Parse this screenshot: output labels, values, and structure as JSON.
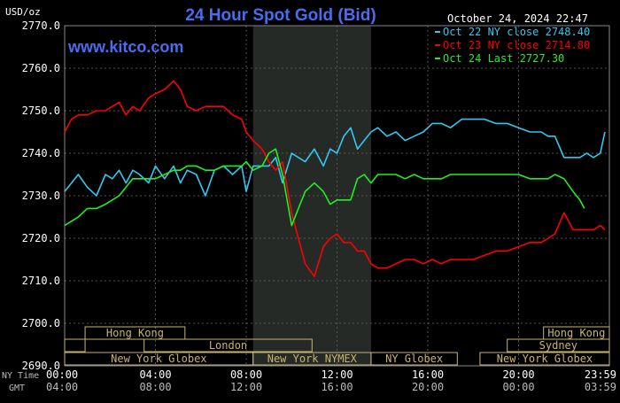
{
  "chart_data": {
    "type": "line",
    "title": "24 Hour Spot Gold (Bid)",
    "site": "www.kitco.com",
    "timestamp": "October 24, 2024 22:47",
    "ylabel": "USD/oz",
    "ylim": [
      2690,
      2770
    ],
    "y_ticks": [
      "2770.0",
      "2760.0",
      "2750.0",
      "2740.0",
      "2730.0",
      "2720.0",
      "2710.0",
      "2700.0",
      "2690.0"
    ],
    "x_ticks": [
      {
        "hour": 0,
        "ny": "00:00",
        "gmt": "04:00"
      },
      {
        "hour": 4,
        "ny": "04:00",
        "gmt": "08:00"
      },
      {
        "hour": 8,
        "ny": "08:00",
        "gmt": "12:00"
      },
      {
        "hour": 12,
        "ny": "12:00",
        "gmt": "16:00"
      },
      {
        "hour": 16,
        "ny": "16:00",
        "gmt": "20:00"
      },
      {
        "hour": 20,
        "ny": "20:00",
        "gmt": "00:00"
      },
      {
        "hour": 23.983,
        "ny": "23:59",
        "gmt": "03:59"
      }
    ],
    "row_labels": {
      "ny": "NY Time",
      "gmt": "GMT"
    },
    "grid": true,
    "legend_position": "top-right",
    "colors": {
      "background": "#000000",
      "grid": "#555555",
      "text": "#ffffff",
      "title": "#4a6cf0",
      "shaded_session": "#262a26",
      "market_box": "#c8b470",
      "series_oct22": "#33c8f0",
      "series_oct23": "#ff0000",
      "series_oct24": "#22ee22"
    },
    "shaded_hours": [
      8.3,
      13.5
    ],
    "market_sessions": [
      {
        "name": "Hong Kong",
        "start": 0.9,
        "end": 5.3,
        "row": 0
      },
      {
        "name": "Hong Kong",
        "start": 21.1,
        "end": 24.0,
        "row": 0
      },
      {
        "name": "",
        "start": 0.0,
        "end": 0.9,
        "row": 1
      },
      {
        "name": "London",
        "start": 3.5,
        "end": 10.9,
        "row": 1
      },
      {
        "name": "Sydney",
        "start": 19.5,
        "end": 24.0,
        "row": 1
      },
      {
        "name": "New York Globex",
        "start": 0.0,
        "end": 8.3,
        "row": 2
      },
      {
        "name": "New York NYMEX",
        "start": 8.3,
        "end": 13.5,
        "row": 2
      },
      {
        "name": "NY Globex",
        "start": 13.5,
        "end": 17.3,
        "row": 2
      },
      {
        "name": "New York Globex",
        "start": 18.3,
        "end": 24.0,
        "row": 2
      }
    ],
    "series": [
      {
        "name": "Oct 22 NY close 2748.40",
        "label": "Oct 22",
        "x": [
          0,
          0.3,
          0.6,
          1,
          1.4,
          1.8,
          2.1,
          2.4,
          2.7,
          3,
          3.3,
          3.7,
          4,
          4.4,
          4.8,
          5.1,
          5.4,
          5.8,
          6.2,
          6.6,
          7,
          7.4,
          7.8,
          8,
          8.3,
          8.7,
          9,
          9.3,
          9.6,
          10,
          10.3,
          10.6,
          11,
          11.4,
          11.7,
          12,
          12.3,
          12.6,
          12.9,
          13.2,
          13.5,
          13.8,
          14.2,
          14.6,
          15,
          15.4,
          15.8,
          16.2,
          16.6,
          17,
          17.5,
          18,
          18.5,
          19,
          19.5,
          20,
          20.5,
          21,
          21.3,
          21.6,
          22,
          22.4,
          22.7,
          23,
          23.3,
          23.6,
          23.8
        ],
        "values": [
          2731,
          2733,
          2735,
          2732,
          2730,
          2735,
          2734,
          2736,
          2733,
          2736,
          2735,
          2733,
          2737,
          2734,
          2737,
          2733,
          2736,
          2735,
          2730,
          2736,
          2737,
          2735,
          2737,
          2731,
          2737,
          2737,
          2737,
          2739,
          2733,
          2740,
          2739,
          2738,
          2741,
          2737,
          2741,
          2740,
          2744,
          2746,
          2741,
          2743,
          2745,
          2746,
          2744,
          2745,
          2743,
          2744,
          2745,
          2747,
          2747,
          2746,
          2748,
          2748,
          2748,
          2747,
          2747,
          2746,
          2745,
          2745,
          2744,
          2744,
          2739,
          2739,
          2739,
          2740,
          2739,
          2740,
          2745
        ]
      },
      {
        "name": "Oct 23 NY close 2714.80",
        "label": "Oct 23",
        "x": [
          0,
          0.3,
          0.6,
          1,
          1.4,
          1.8,
          2.1,
          2.4,
          2.7,
          3,
          3.3,
          3.7,
          4,
          4.4,
          4.8,
          5.1,
          5.4,
          5.8,
          6.2,
          6.6,
          7,
          7.4,
          7.8,
          8,
          8.3,
          8.7,
          9,
          9.3,
          9.6,
          10,
          10.3,
          10.6,
          11,
          11.4,
          11.7,
          12,
          12.3,
          12.6,
          12.9,
          13.2,
          13.5,
          13.8,
          14.2,
          14.6,
          15,
          15.4,
          15.8,
          16.2,
          16.6,
          17,
          17.5,
          18,
          18.5,
          19,
          19.5,
          20,
          20.5,
          21,
          21.3,
          21.6,
          22,
          22.4,
          22.7,
          23,
          23.3,
          23.6,
          23.8
        ],
        "values": [
          2745,
          2748,
          2749,
          2749,
          2750,
          2750,
          2751,
          2752,
          2749,
          2751,
          2750,
          2753,
          2754,
          2755,
          2757,
          2755,
          2751,
          2750,
          2751,
          2751,
          2751,
          2749,
          2748,
          2745,
          2743,
          2741,
          2738,
          2736,
          2738,
          2726,
          2720,
          2714,
          2711,
          2718,
          2720,
          2721,
          2719,
          2719,
          2717,
          2717,
          2714,
          2713,
          2713,
          2714,
          2715,
          2715,
          2714,
          2715,
          2714,
          2715,
          2715,
          2715,
          2716,
          2717,
          2717,
          2718,
          2719,
          2719,
          2720,
          2721,
          2726,
          2722,
          2722,
          2722,
          2722,
          2723,
          2722
        ]
      },
      {
        "name": "Oct 24 Last 2727.30",
        "label": "Oct 24",
        "x": [
          0,
          0.3,
          0.6,
          1,
          1.4,
          1.8,
          2.1,
          2.4,
          2.7,
          3,
          3.3,
          3.7,
          4,
          4.4,
          4.8,
          5.1,
          5.4,
          5.8,
          6.2,
          6.6,
          7,
          7.4,
          7.8,
          8,
          8.3,
          8.7,
          9,
          9.3,
          9.6,
          10,
          10.3,
          10.6,
          11,
          11.4,
          11.7,
          12,
          12.3,
          12.6,
          12.9,
          13.2,
          13.5,
          13.8,
          14.2,
          14.6,
          15,
          15.4,
          15.8,
          16.2,
          16.6,
          17,
          17.5,
          18,
          18.5,
          19,
          19.5,
          20,
          20.5,
          21,
          21.3,
          21.6,
          22,
          22.4,
          22.7,
          22.9
        ],
        "values": [
          2723,
          2724,
          2725,
          2727,
          2727,
          2728,
          2729,
          2730,
          2732,
          2734,
          2734,
          2734,
          2734,
          2735,
          2736,
          2736,
          2737,
          2737,
          2736,
          2736,
          2737,
          2737,
          2737,
          2738,
          2736,
          2737,
          2740,
          2741,
          2735,
          2723,
          2727,
          2731,
          2733,
          2731,
          2728,
          2729,
          2729,
          2729,
          2734,
          2735,
          2733,
          2735,
          2735,
          2735,
          2734,
          2735,
          2734,
          2734,
          2734,
          2735,
          2735,
          2735,
          2735,
          2735,
          2735,
          2735,
          2734,
          2734,
          2734,
          2735,
          2734,
          2731,
          2729,
          2727
        ]
      }
    ]
  }
}
